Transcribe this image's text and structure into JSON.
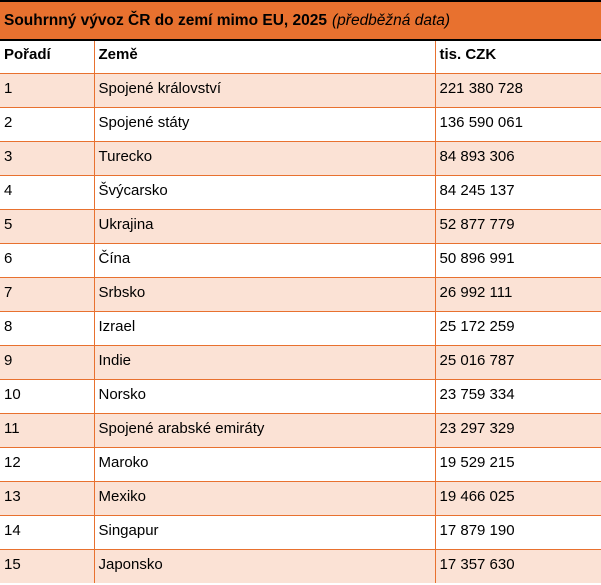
{
  "title": {
    "main": "Souhrnný vývoz ČR do zemí mimo EU, 2025",
    "note": "(předběžná data)"
  },
  "table": {
    "columns": [
      "Pořadí",
      "Země",
      "tis. CZK"
    ],
    "rows": [
      {
        "rank": "1",
        "country": "Spojené království",
        "value": "221 380 728"
      },
      {
        "rank": "2",
        "country": "Spojené státy",
        "value": "136 590 061"
      },
      {
        "rank": "3",
        "country": "Turecko",
        "value": "84 893 306"
      },
      {
        "rank": "4",
        "country": "Švýcarsko",
        "value": "84 245 137"
      },
      {
        "rank": "5",
        "country": "Ukrajina",
        "value": "52 877 779"
      },
      {
        "rank": "6",
        "country": "Čína",
        "value": "50 896 991"
      },
      {
        "rank": "7",
        "country": "Srbsko",
        "value": "26 992 111"
      },
      {
        "rank": "8",
        "country": "Izrael",
        "value": "25 172 259"
      },
      {
        "rank": "9",
        "country": "Indie",
        "value": "25 016 787"
      },
      {
        "rank": "10",
        "country": "Norsko",
        "value": "23 759 334"
      },
      {
        "rank": "11",
        "country": "Spojené arabské emiráty",
        "value": "23 297 329"
      },
      {
        "rank": "12",
        "country": "Maroko",
        "value": "19 529 215"
      },
      {
        "rank": "13",
        "country": "Mexiko",
        "value": "19 466 025"
      },
      {
        "rank": "14",
        "country": "Singapur",
        "value": "17 879 190"
      },
      {
        "rank": "15",
        "country": "Japonsko",
        "value": "17 357 630"
      }
    ]
  },
  "colors": {
    "accent_orange": "#E8712F",
    "row_peach": "#FBE2D5",
    "border_black": "#000000",
    "text": "#000000"
  }
}
